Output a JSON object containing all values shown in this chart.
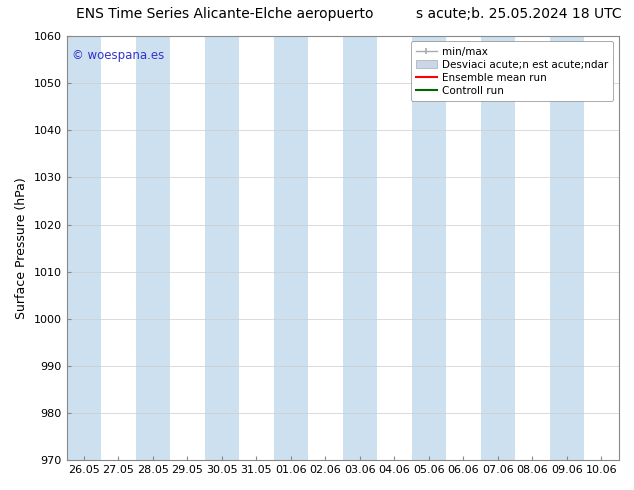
{
  "title_left": "ENS Time Series Alicante-Elche aeropuerto",
  "title_right": "s acute;b. 25.05.2024 18 UTC",
  "ylabel": "Surface Pressure (hPa)",
  "ylim": [
    970,
    1060
  ],
  "yticks": [
    970,
    980,
    990,
    1000,
    1010,
    1020,
    1030,
    1040,
    1050,
    1060
  ],
  "xtick_labels": [
    "26.05",
    "27.05",
    "28.05",
    "29.05",
    "30.05",
    "31.05",
    "01.06",
    "02.06",
    "03.06",
    "04.06",
    "05.06",
    "06.06",
    "07.06",
    "08.06",
    "09.06",
    "10.06"
  ],
  "background_color": "#ffffff",
  "plot_bg_color": "#ffffff",
  "shading_color": "#cce0f0",
  "shading_alpha": 1.0,
  "watermark_text": "© woespana.es",
  "watermark_color": "#3333cc",
  "legend_label_minmax": "min/max",
  "legend_label_std": "Desviaci acute;n est acute;ndar",
  "legend_label_ens": "Ensemble mean run",
  "legend_label_ctrl": "Controll run",
  "grid_color": "#cccccc",
  "spine_color": "#888888",
  "title_fontsize": 10,
  "axis_label_fontsize": 9,
  "tick_fontsize": 8,
  "legend_fontsize": 7.5
}
